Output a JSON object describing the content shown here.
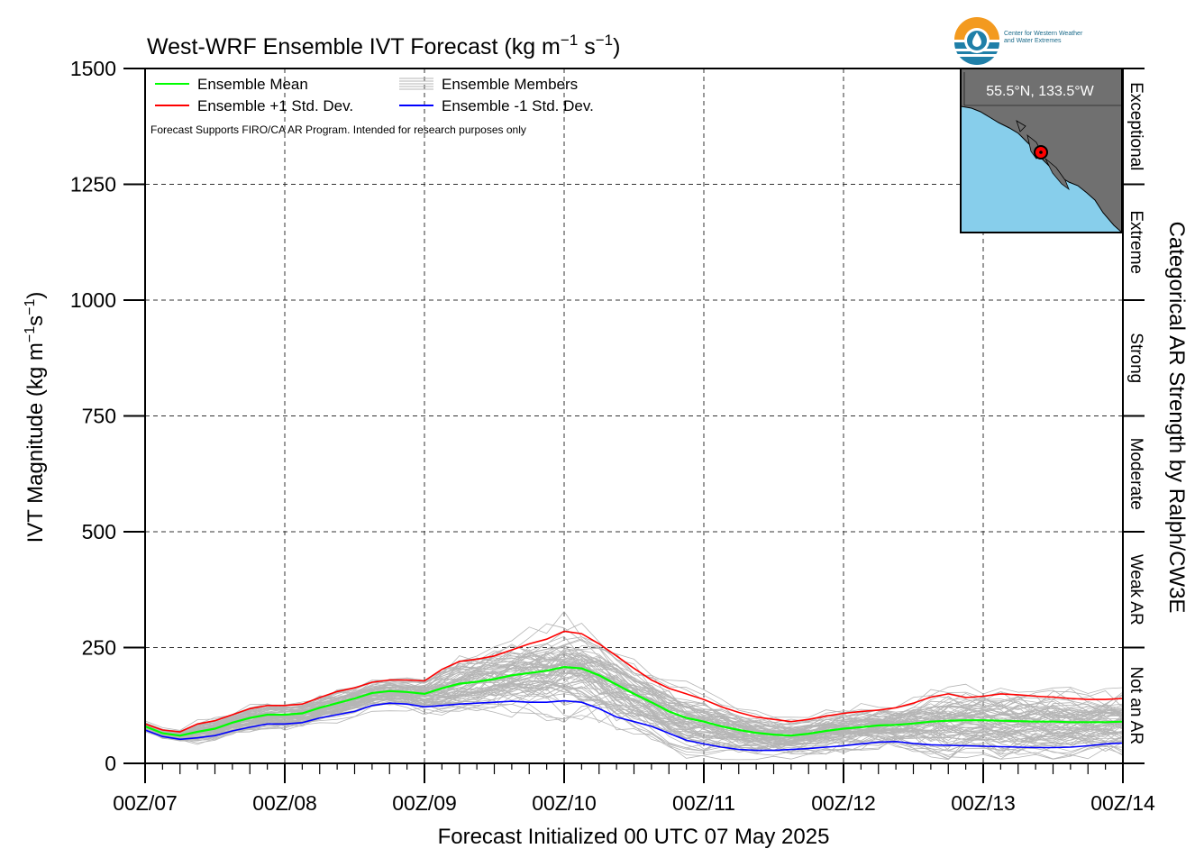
{
  "chart_data": {
    "type": "line",
    "title": "West-WRF Ensemble IVT Forecast (kg m",
    "title_sup1": "−1",
    "title_mid": " s",
    "title_sup2": "−1",
    "title_end": ")",
    "xlabel": "Forecast Initialized 00 UTC 07 May 2025",
    "ylabel": "IVT Magnitude (kg m",
    "ylabel_sup1": "−1",
    "ylabel_mid": "s",
    "ylabel_sup2": "−1",
    "ylabel_end": ")",
    "right_label": "Categorical AR Strength by Ralph/CW3E",
    "note": "Forecast Supports FIRO/CA AR Program. Intended for research purposes only",
    "location_label": "55.5°N, 133.5°W",
    "ylim": [
      0,
      1500
    ],
    "xlim": [
      0,
      168
    ],
    "y_ticks": [
      0,
      250,
      500,
      750,
      1000,
      1250,
      1500
    ],
    "y_tick_labels": [
      "0",
      "250",
      "500",
      "750",
      "1000",
      "1250",
      "1500"
    ],
    "x_ticks": [
      0,
      24,
      48,
      72,
      96,
      120,
      144,
      168
    ],
    "x_tick_labels": [
      "00Z/07",
      "00Z/08",
      "00Z/09",
      "00Z/10",
      "00Z/11",
      "00Z/12",
      "00Z/13",
      "00Z/14"
    ],
    "grid": true,
    "legend_position": "top-left",
    "legend": [
      {
        "label": "Ensemble Mean",
        "color": "#00ff00"
      },
      {
        "label": "Ensemble +1 Std. Dev.",
        "color": "#ff0000"
      },
      {
        "label": "Ensemble Members",
        "color": "#b5b5b5"
      },
      {
        "label": "Ensemble -1 Std. Dev.",
        "color": "#0000ff"
      }
    ],
    "categories": [
      {
        "label": "Not an AR",
        "from": 0,
        "to": 250
      },
      {
        "label": "Weak AR",
        "from": 250,
        "to": 500
      },
      {
        "label": "Moderate",
        "from": 500,
        "to": 750
      },
      {
        "label": "Strong",
        "from": 750,
        "to": 1000
      },
      {
        "label": "Extreme",
        "from": 1000,
        "to": 1250
      },
      {
        "label": "Exceptional",
        "from": 1250,
        "to": 1500
      }
    ],
    "x": [
      0,
      3,
      6,
      9,
      12,
      15,
      18,
      21,
      24,
      27,
      30,
      33,
      36,
      39,
      42,
      45,
      48,
      51,
      54,
      57,
      60,
      63,
      66,
      69,
      72,
      75,
      78,
      81,
      84,
      87,
      90,
      93,
      96,
      99,
      102,
      105,
      108,
      111,
      114,
      117,
      120,
      123,
      126,
      129,
      132,
      135,
      138,
      141,
      144,
      147,
      150,
      153,
      156,
      159,
      162,
      165,
      168
    ],
    "series": [
      {
        "name": "Ensemble Mean",
        "color": "#00ff00",
        "values": [
          80,
          65,
          60,
          68,
          75,
          88,
          98,
          105,
          105,
          108,
          120,
          130,
          140,
          152,
          156,
          154,
          150,
          162,
          172,
          176,
          182,
          190,
          195,
          200,
          208,
          205,
          190,
          170,
          150,
          132,
          112,
          98,
          90,
          80,
          72,
          66,
          62,
          60,
          64,
          70,
          75,
          78,
          82,
          83,
          86,
          90,
          92,
          93,
          93,
          92,
          91,
          90,
          90,
          89,
          89,
          89,
          90
        ]
      },
      {
        "name": "Ensemble +1 Std. Dev.",
        "color": "#ff0000",
        "values": [
          85,
          72,
          68,
          85,
          92,
          105,
          118,
          125,
          125,
          128,
          142,
          155,
          163,
          175,
          180,
          180,
          178,
          203,
          220,
          225,
          232,
          245,
          258,
          268,
          285,
          280,
          258,
          232,
          205,
          180,
          162,
          150,
          138,
          122,
          110,
          100,
          95,
          90,
          95,
          102,
          108,
          112,
          115,
          120,
          130,
          143,
          150,
          142,
          145,
          150,
          148,
          145,
          143,
          140,
          138,
          138,
          140
        ]
      },
      {
        "name": "Ensemble -1 Std. Dev.",
        "color": "#0000ff",
        "values": [
          72,
          58,
          52,
          55,
          60,
          70,
          78,
          85,
          85,
          88,
          98,
          105,
          112,
          125,
          130,
          128,
          122,
          125,
          128,
          130,
          132,
          134,
          132,
          132,
          135,
          132,
          118,
          100,
          90,
          80,
          65,
          50,
          42,
          35,
          30,
          28,
          28,
          30,
          32,
          35,
          38,
          42,
          46,
          47,
          43,
          40,
          39,
          38,
          37,
          36,
          35,
          34,
          34,
          35,
          38,
          42,
          44
        ]
      }
    ]
  },
  "colors": {
    "mean": "#00ff00",
    "plus_sd": "#ff0000",
    "minus_sd": "#0000ff",
    "members": "#b5b5b5",
    "ocean": "#87ceeb",
    "land": "#707070",
    "marker": "#ff0000"
  },
  "logo": {
    "line1": "Center for Western Weather",
    "line2": "and Water Extremes"
  }
}
